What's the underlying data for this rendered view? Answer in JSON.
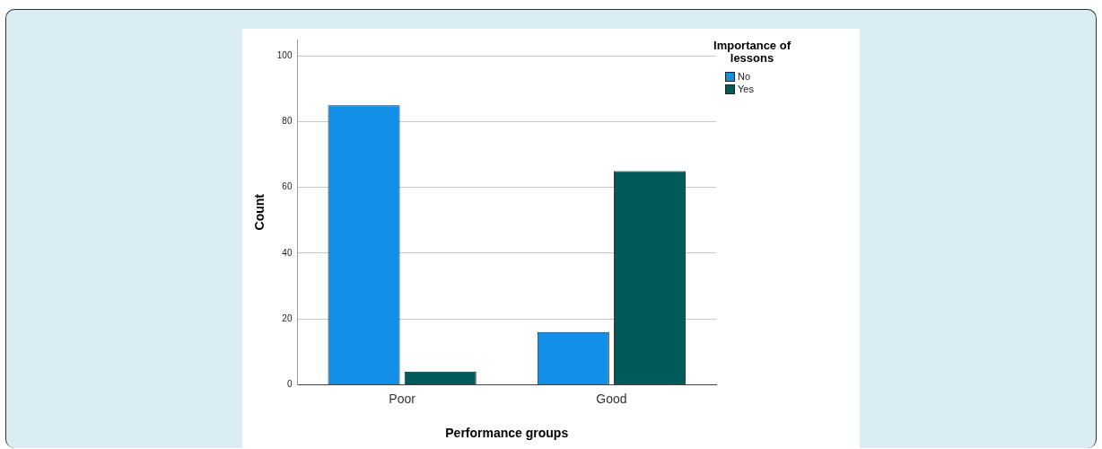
{
  "chart_data": {
    "type": "bar",
    "xlabel": "Performance groups",
    "ylabel": "Count",
    "legend_title": "Importance of lessons",
    "categories": [
      "Poor",
      "Good"
    ],
    "series": [
      {
        "name": "No",
        "color": "#128fe6",
        "values": [
          85,
          16
        ]
      },
      {
        "name": "Yes",
        "color": "#005a5a",
        "values": [
          4,
          65
        ]
      }
    ],
    "ylim": [
      0,
      105
    ],
    "yticks": [
      0,
      20,
      40,
      60,
      80,
      100
    ],
    "grid": "y",
    "legend": "top right"
  }
}
